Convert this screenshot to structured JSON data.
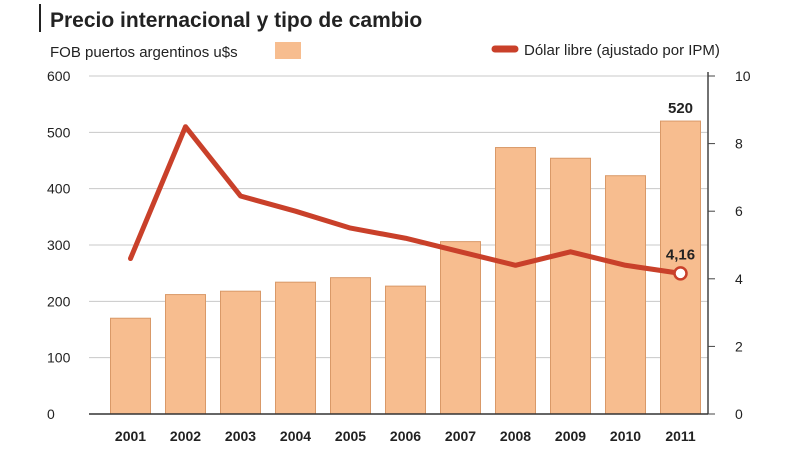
{
  "chart_data": {
    "type": "bar",
    "title": "Precio internacional y tipo de cambio",
    "categories": [
      "2001",
      "2002",
      "2003",
      "2004",
      "2005",
      "2006",
      "2007",
      "2008",
      "2009",
      "2010",
      "2011"
    ],
    "series": [
      {
        "name": "FOB puertos argentinos u$s",
        "type": "bar",
        "axis": "left",
        "color": "#f7bd8f",
        "values": [
          170,
          212,
          218,
          234,
          242,
          227,
          306,
          473,
          454,
          423,
          520
        ]
      },
      {
        "name": "Dólar libre (ajustado por IPM)",
        "type": "line",
        "axis": "right",
        "color": "#c9402a",
        "values": [
          4.6,
          8.5,
          6.45,
          6.0,
          5.5,
          5.2,
          4.8,
          4.4,
          4.8,
          4.4,
          4.16
        ]
      }
    ],
    "y_left": {
      "min": 0,
      "max": 600,
      "ticks": [
        "0",
        "100",
        "200",
        "300",
        "400",
        "500",
        "600"
      ]
    },
    "y_right": {
      "min": 0,
      "max": 10,
      "ticks": [
        "0",
        "2",
        "4",
        "6",
        "8",
        "10"
      ]
    },
    "annotations": {
      "bar_last": "520",
      "line_last": "4,16"
    },
    "grid": true,
    "legend_position": "top"
  }
}
